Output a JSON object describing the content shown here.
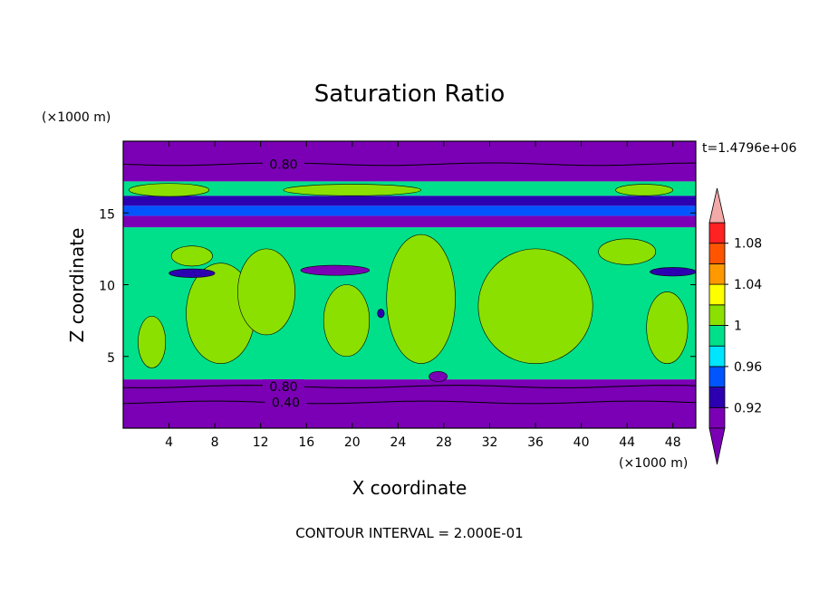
{
  "chart_data": {
    "type": "heatmap",
    "title": "Saturation Ratio",
    "xlabel": "X coordinate",
    "ylabel": "Z coordinate",
    "x_units": "(×1000 m)",
    "y_units": "(×1000 m)",
    "time_label": "t=1.4796e+06",
    "footer": "CONTOUR INTERVAL = 2.000E-01",
    "xlim": [
      0,
      50
    ],
    "ylim": [
      0,
      20
    ],
    "x_ticks": [
      4,
      8,
      12,
      16,
      20,
      24,
      28,
      32,
      36,
      40,
      44,
      48
    ],
    "y_ticks": [
      5,
      10,
      15
    ],
    "colorbar": {
      "levels": [
        0.9,
        0.92,
        0.94,
        0.96,
        0.98,
        1.0,
        1.02,
        1.04,
        1.06,
        1.08,
        1.1
      ],
      "tick_labels": [
        "0.92",
        "0.96",
        "1",
        "1.04",
        "1.08"
      ],
      "tick_values": [
        0.92,
        0.96,
        1.0,
        1.04,
        1.08
      ],
      "under_color": "#7b00b5",
      "over_color": "#f4a9a9",
      "colors": [
        "#7b00b5",
        "#2c00b0",
        "#0055ff",
        "#00e5ff",
        "#00e08a",
        "#8be000",
        "#ffff00",
        "#ff9900",
        "#ff5500",
        "#ff2222"
      ]
    },
    "contour_lines": [
      {
        "label": "0.80",
        "z": 18.4,
        "x": 14.0
      },
      {
        "label": "0.80",
        "z": 2.9,
        "x": 14.0
      },
      {
        "label": "0.40",
        "z": 1.8,
        "x": 14.2
      }
    ],
    "bands": [
      {
        "z0": 0.0,
        "z1": 3.4,
        "value": 0.4
      },
      {
        "z0": 3.4,
        "z1": 10.0,
        "value": 0.99
      },
      {
        "z0": 10.0,
        "z1": 14.0,
        "value": 0.99
      },
      {
        "z0": 14.0,
        "z1": 14.8,
        "value": 0.85
      },
      {
        "z0": 14.8,
        "z1": 15.5,
        "value": 0.95
      },
      {
        "z0": 15.5,
        "z1": 16.2,
        "value": 0.92
      },
      {
        "z0": 16.2,
        "z1": 17.2,
        "value": 0.98
      },
      {
        "z0": 17.2,
        "z1": 20.0,
        "value": 0.8
      }
    ],
    "blobs": [
      {
        "x": 8.5,
        "z": 8.0,
        "rx": 3.0,
        "rz": 3.5,
        "value": 1.0
      },
      {
        "x": 12.5,
        "z": 9.5,
        "rx": 2.5,
        "rz": 3.0,
        "value": 1.0
      },
      {
        "x": 19.5,
        "z": 7.5,
        "rx": 2.0,
        "rz": 2.5,
        "value": 1.0
      },
      {
        "x": 26.0,
        "z": 9.0,
        "rx": 3.0,
        "rz": 4.5,
        "value": 1.0
      },
      {
        "x": 36.0,
        "z": 8.5,
        "rx": 5.0,
        "rz": 4.0,
        "value": 1.0
      },
      {
        "x": 47.5,
        "z": 7.0,
        "rx": 1.8,
        "rz": 2.5,
        "value": 1.0
      },
      {
        "x": 2.5,
        "z": 6.0,
        "rx": 1.2,
        "rz": 1.8,
        "value": 1.0
      },
      {
        "x": 44.0,
        "z": 12.3,
        "rx": 2.5,
        "rz": 0.9,
        "value": 1.0
      },
      {
        "x": 6.0,
        "z": 12.0,
        "rx": 1.8,
        "rz": 0.7,
        "value": 1.0
      },
      {
        "x": 18.5,
        "z": 11.0,
        "rx": 3.0,
        "rz": 0.35,
        "value": 0.9
      },
      {
        "x": 6.0,
        "z": 10.8,
        "rx": 2.0,
        "rz": 0.3,
        "value": 0.92
      },
      {
        "x": 48.0,
        "z": 10.9,
        "rx": 2.0,
        "rz": 0.3,
        "value": 0.92
      },
      {
        "x": 22.5,
        "z": 8.0,
        "rx": 0.3,
        "rz": 0.3,
        "value": 0.92
      },
      {
        "x": 4.0,
        "z": 16.6,
        "rx": 3.5,
        "rz": 0.45,
        "value": 1.0
      },
      {
        "x": 20.0,
        "z": 16.6,
        "rx": 6.0,
        "rz": 0.4,
        "value": 1.0
      },
      {
        "x": 45.5,
        "z": 16.6,
        "rx": 2.5,
        "rz": 0.4,
        "value": 1.0
      },
      {
        "x": 27.5,
        "z": 3.6,
        "rx": 0.8,
        "rz": 0.35,
        "value": 0.8
      }
    ]
  }
}
